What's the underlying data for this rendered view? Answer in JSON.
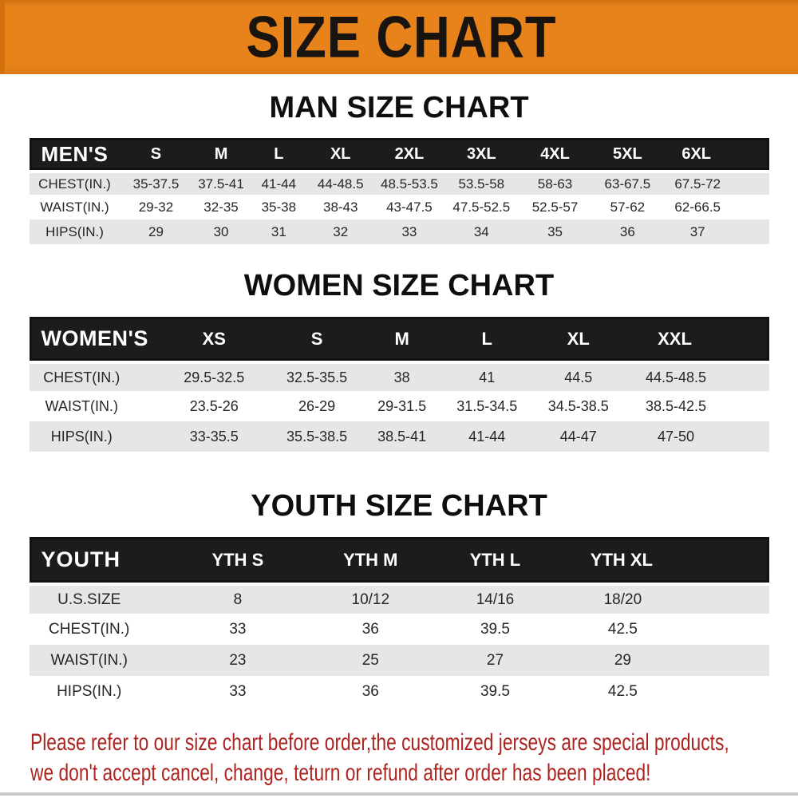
{
  "banner": {
    "title": "SIZE CHART"
  },
  "sections": [
    {
      "id": "men",
      "title": "MAN SIZE CHART",
      "corner_label": "MEN'S",
      "columns": [
        "S",
        "M",
        "L",
        "XL",
        "2XL",
        "3XL",
        "4XL",
        "5XL",
        "6XL"
      ],
      "rows": [
        {
          "label": "CHEST(IN.)",
          "values": [
            "35-37.5",
            "37.5-41",
            "41-44",
            "44-48.5",
            "48.5-53.5",
            "53.5-58",
            "58-63",
            "63-67.5",
            "67.5-72"
          ]
        },
        {
          "label": "WAIST(IN.)",
          "values": [
            "29-32",
            "32-35",
            "35-38",
            "38-43",
            "43-47.5",
            "47.5-52.5",
            "52.5-57",
            "57-62",
            "62-66.5"
          ]
        },
        {
          "label": "HIPS(IN.)",
          "values": [
            "29",
            "30",
            "31",
            "32",
            "33",
            "34",
            "35",
            "36",
            "37"
          ]
        }
      ]
    },
    {
      "id": "women",
      "title": "WOMEN SIZE CHART",
      "corner_label": "WOMEN'S",
      "columns": [
        "XS",
        "S",
        "M",
        "L",
        "XL",
        "XXL"
      ],
      "rows": [
        {
          "label": "CHEST(IN.)",
          "values": [
            "29.5-32.5",
            "32.5-35.5",
            "38",
            "41",
            "44.5",
            "44.5-48.5"
          ]
        },
        {
          "label": "WAIST(IN.)",
          "values": [
            "23.5-26",
            "26-29",
            "29-31.5",
            "31.5-34.5",
            "34.5-38.5",
            "38.5-42.5"
          ]
        },
        {
          "label": "HIPS(IN.)",
          "values": [
            "33-35.5",
            "35.5-38.5",
            "38.5-41",
            "41-44",
            "44-47",
            "47-50"
          ]
        }
      ]
    },
    {
      "id": "youth",
      "title": "YOUTH SIZE CHART",
      "corner_label": "YOUTH",
      "columns": [
        "YTH S",
        "YTH M",
        "YTH L",
        "YTH XL"
      ],
      "rows": [
        {
          "label": "U.S.SIZE",
          "values": [
            "8",
            "10/12",
            "14/16",
            "18/20"
          ]
        },
        {
          "label": "CHEST(IN.)",
          "values": [
            "33",
            "36",
            "39.5",
            "42.5"
          ]
        },
        {
          "label": "WAIST(IN.)",
          "values": [
            "23",
            "25",
            "27",
            "29"
          ]
        },
        {
          "label": "HIPS(IN.)",
          "values": [
            "33",
            "36",
            "39.5",
            "42.5"
          ]
        }
      ]
    }
  ],
  "footer": {
    "lines": [
      "Please refer to our size chart before order,the customized jerseys are special products,",
      "we don't accept cancel, change, teturn or refund after order has been placed!"
    ]
  },
  "colors": {
    "banner_bg": "#E8831C",
    "header_bar": "#1D1B1C",
    "row_alt": "#E7E6E6",
    "footer_text": "#AB2420"
  }
}
